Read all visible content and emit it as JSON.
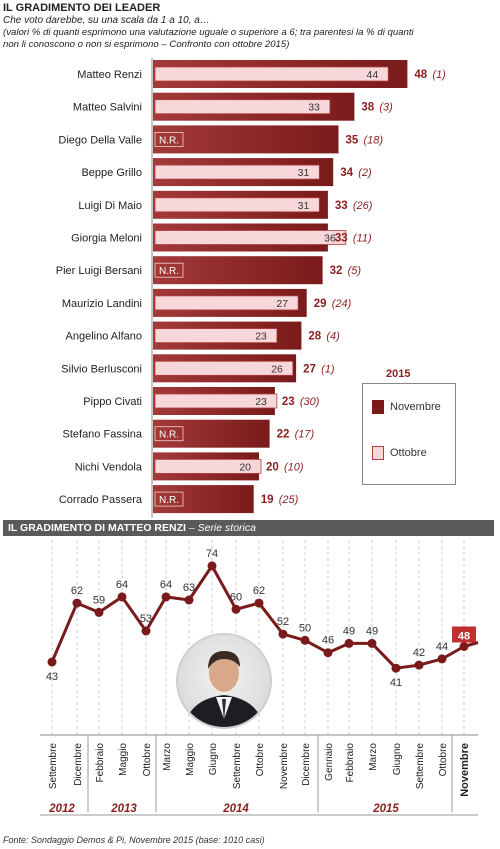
{
  "panel1": {
    "title": "IL GRADIMENTO DEI LEADER",
    "subtitle": "Che voto darebbe, su una scala da 1 a 10, a…",
    "note": "(valori % di quanti esprimono una valutazione uguale o superiore a 6; tra parentesi la % di quanti non li conoscono o non si esprimono – Confronto con ottobre 2015)",
    "legend": {
      "year": "2015",
      "nov_label": "Novembre",
      "oct_label": "Ottobre"
    }
  },
  "panel2": {
    "title": "IL GRADIMENTO DI MATTEO RENZI",
    "subtitle": " – Serie storica"
  },
  "source": "Fonte: Sondaggio Demos & Pi, Novembre 2015 (base: 1010 casi)",
  "colors": {
    "dark_red": "#7a1a1a",
    "red_text": "#8b1f1f",
    "pink": "#f8d7da",
    "pink_border": "#b04040",
    "grid": "#cccccc"
  },
  "chart_data": [
    {
      "type": "bar",
      "title": "IL GRADIMENTO DEI LEADER",
      "xlim": [
        0,
        50
      ],
      "categories": [
        "Matteo Renzi",
        "Matteo Salvini",
        "Diego Della Valle",
        "Beppe Grillo",
        "Luigi Di Maio",
        "Giorgia Meloni",
        "Pier Luigi Bersani",
        "Maurizio Landini",
        "Angelino Alfano",
        "Silvio Berlusconi",
        "Pippo Civati",
        "Stefano Fassina",
        "Nichi Vendola",
        "Corrado Passera"
      ],
      "series": [
        {
          "name": "Novembre",
          "values": [
            48,
            38,
            35,
            34,
            33,
            33,
            32,
            29,
            28,
            27,
            23,
            22,
            20,
            19
          ],
          "unknown": [
            "(1)",
            "(3)",
            "(18)",
            "(2)",
            "(26)",
            "(11)",
            "(5)",
            "(24)",
            "(4)",
            "(1)",
            "(30)",
            "(17)",
            "(10)",
            "(25)"
          ]
        },
        {
          "name": "Ottobre",
          "values": [
            44,
            33,
            null,
            31,
            31,
            36,
            null,
            27,
            23,
            26,
            23,
            null,
            20,
            null
          ],
          "labels": [
            "44",
            "33",
            "N.R.",
            "31",
            "31",
            "36",
            "N.R.",
            "27",
            "23",
            "26",
            "23",
            "N.R.",
            "20",
            "N.R."
          ]
        }
      ],
      "legend": "right"
    },
    {
      "type": "line",
      "title": "IL GRADIMENTO DI MATTEO RENZI",
      "ylim": [
        35,
        80
      ],
      "x": [
        "Settembre",
        "Dicembre",
        "Febbraio",
        "Maggio",
        "Ottobre",
        "Marzo",
        "Maggio",
        "Giugno",
        "Settembre",
        "Ottobre",
        "Novembre",
        "Dicembre",
        "Gennaio",
        "Febbraio",
        "Marzo",
        "Giugno",
        "Settembre",
        "Ottobre",
        "Novembre"
      ],
      "values": [
        43,
        62,
        59,
        64,
        53,
        64,
        63,
        74,
        60,
        62,
        52,
        50,
        46,
        49,
        49,
        41,
        42,
        44,
        48
      ],
      "years": [
        "2012",
        "2013",
        "2014",
        "2015"
      ]
    }
  ]
}
